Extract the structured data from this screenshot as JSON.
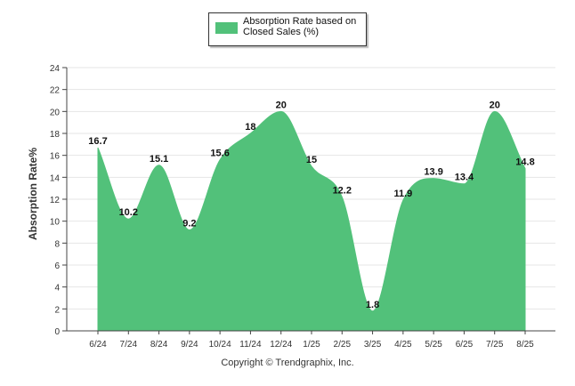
{
  "colors": {
    "area": "#52c17a",
    "grid": "#e6e6e6",
    "axis": "#444444",
    "label": "#111111"
  },
  "legend": {
    "label": "Absorption Rate based on Closed Sales (%)"
  },
  "footer": {
    "copyright": "Copyright © Trendgraphix, Inc."
  },
  "chart_data": {
    "type": "area",
    "categories": [
      "6/24",
      "7/24",
      "8/24",
      "9/24",
      "10/24",
      "11/24",
      "12/24",
      "1/25",
      "2/25",
      "3/25",
      "4/25",
      "5/25",
      "6/25",
      "7/25",
      "8/25"
    ],
    "series": [
      {
        "name": "Absorption Rate based on Closed Sales (%)",
        "values": [
          16.7,
          10.2,
          15.1,
          9.2,
          15.6,
          18,
          20,
          15,
          12.2,
          1.8,
          11.9,
          13.9,
          13.4,
          20,
          14.8
        ]
      }
    ],
    "ylabel": "Absorption Rate%",
    "xlabel": "",
    "ylim": [
      0,
      24
    ],
    "yticks": [
      0,
      2,
      4,
      6,
      8,
      10,
      12,
      14,
      16,
      18,
      20,
      22,
      24
    ],
    "grid": true,
    "legend_position": "top-center"
  }
}
